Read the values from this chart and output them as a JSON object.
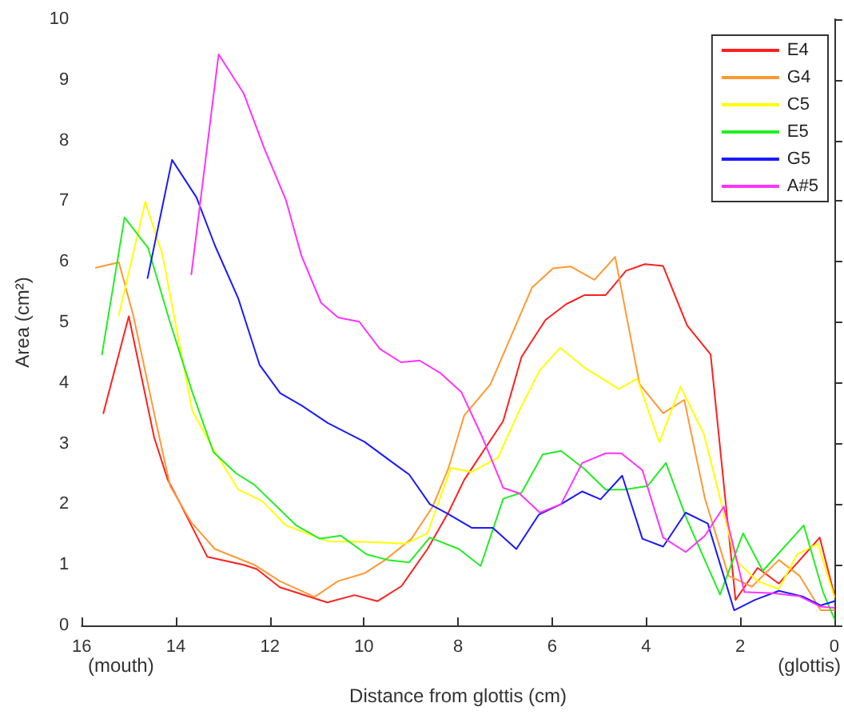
{
  "chart_data": {
    "type": "line",
    "xlabel": "Distance from glottis (cm)",
    "ylabel": "Area (cm²)",
    "annotations": [
      "(mouth)",
      "(glottis)"
    ],
    "xlim": [
      16,
      0
    ],
    "xticks": [
      16,
      14,
      12,
      10,
      8,
      6,
      4,
      2,
      0
    ],
    "ylim": [
      0,
      10
    ],
    "yticks": [
      0,
      1,
      2,
      3,
      4,
      5,
      6,
      7,
      8,
      9,
      10
    ],
    "grid": false,
    "legend": "top right",
    "marker": "none",
    "line_style": "solid",
    "series": [
      {
        "name": "E4",
        "color": "#ff2020",
        "x": [
          15.54,
          15.0,
          14.46,
          14.17,
          13.9,
          13.33,
          12.56,
          12.28,
          11.79,
          10.78,
          10.2,
          9.71,
          9.2,
          8.65,
          8.2,
          7.87,
          7.04,
          6.65,
          6.14,
          5.7,
          5.31,
          4.86,
          4.43,
          4.03,
          3.64,
          3.13,
          2.63,
          2.1,
          1.63,
          1.18,
          0.31,
          0
        ],
        "values": [
          3.5,
          5.1,
          3.1,
          2.4,
          2.0,
          1.13,
          1.0,
          0.93,
          0.63,
          0.38,
          0.5,
          0.4,
          0.65,
          1.26,
          1.87,
          2.4,
          3.37,
          4.43,
          5.04,
          5.3,
          5.45,
          5.45,
          5.85,
          5.96,
          5.93,
          4.95,
          4.47,
          0.42,
          0.95,
          0.69,
          1.45,
          0.5
        ]
      },
      {
        "name": "G4",
        "color": "#ff9933",
        "x": [
          15.7,
          15.21,
          14.9,
          14.4,
          14.12,
          13.67,
          13.17,
          12.33,
          11.79,
          11.05,
          10.55,
          9.99,
          9.55,
          8.99,
          8.54,
          8.21,
          7.87,
          7.31,
          6.43,
          5.98,
          5.6,
          5.1,
          4.66,
          4.14,
          3.64,
          3.19,
          2.75,
          2.25,
          1.75,
          1.18,
          0.74,
          0.29,
          0
        ],
        "values": [
          5.9,
          5.99,
          5.1,
          3.28,
          2.3,
          1.7,
          1.26,
          1.0,
          0.73,
          0.47,
          0.73,
          0.86,
          1.08,
          1.43,
          1.96,
          2.58,
          3.46,
          3.98,
          5.57,
          5.89,
          5.92,
          5.7,
          6.08,
          3.98,
          3.5,
          3.72,
          2.09,
          0.82,
          0.64,
          1.08,
          0.82,
          0.25,
          0.25
        ]
      },
      {
        "name": "C5",
        "color": "#ffff00",
        "x": [
          15.21,
          14.65,
          14.28,
          14.0,
          13.65,
          13.22,
          12.67,
          12.16,
          11.66,
          10.78,
          9.99,
          9.11,
          8.65,
          8.15,
          7.71,
          7.15,
          6.7,
          6.27,
          5.83,
          5.31,
          4.58,
          4.19,
          3.72,
          3.27,
          2.77,
          2.1,
          1.63,
          1.18,
          0.79,
          0.35,
          0
        ],
        "values": [
          5.12,
          6.99,
          6.1,
          4.95,
          3.54,
          2.93,
          2.24,
          2.05,
          1.65,
          1.39,
          1.38,
          1.35,
          1.52,
          2.6,
          2.53,
          2.77,
          3.54,
          4.2,
          4.58,
          4.25,
          3.9,
          4.07,
          3.02,
          3.94,
          3.15,
          1.08,
          0.73,
          0.6,
          1.17,
          1.35,
          0.47
        ]
      },
      {
        "name": "E5",
        "color": "#22ee22",
        "x": [
          15.57,
          15.09,
          14.59,
          14.12,
          13.65,
          13.2,
          12.72,
          12.33,
          11.44,
          10.94,
          10.49,
          9.94,
          9.49,
          9.04,
          8.6,
          7.98,
          7.52,
          7.04,
          6.65,
          6.2,
          5.81,
          5.31,
          4.86,
          4.47,
          3.97,
          3.58,
          3.13,
          2.43,
          1.94,
          1.52,
          0.65,
          0.24,
          0
        ],
        "values": [
          4.47,
          6.73,
          6.23,
          4.99,
          3.85,
          2.86,
          2.51,
          2.32,
          1.65,
          1.43,
          1.48,
          1.17,
          1.08,
          1.04,
          1.45,
          1.26,
          0.98,
          2.09,
          2.19,
          2.82,
          2.88,
          2.58,
          2.24,
          2.24,
          2.3,
          2.68,
          1.74,
          0.51,
          1.52,
          0.9,
          1.65,
          0.55,
          0.11
        ]
      },
      {
        "name": "G5",
        "color": "#1a1aff",
        "x": [
          14.6,
          14.08,
          13.56,
          13.17,
          12.67,
          12.22,
          11.78,
          11.33,
          10.77,
          9.99,
          9.43,
          9.04,
          8.6,
          8.21,
          7.71,
          7.26,
          6.76,
          6.28,
          5.81,
          5.36,
          4.97,
          4.51,
          4.08,
          3.64,
          3.16,
          2.69,
          2.13,
          1.69,
          1.18,
          0.68,
          0.29,
          0
        ],
        "values": [
          5.73,
          7.68,
          7.06,
          6.27,
          5.39,
          4.3,
          3.83,
          3.63,
          3.34,
          3.03,
          2.71,
          2.49,
          2.0,
          1.84,
          1.61,
          1.61,
          1.26,
          1.83,
          2.0,
          2.21,
          2.08,
          2.47,
          1.43,
          1.3,
          1.86,
          1.68,
          0.25,
          0.42,
          0.57,
          0.48,
          0.33,
          0.4
        ]
      },
      {
        "name": "A#5",
        "color": "#ff33ff",
        "x": [
          13.67,
          13.09,
          12.56,
          12.11,
          11.66,
          11.33,
          10.91,
          10.55,
          10.1,
          9.66,
          9.21,
          8.82,
          8.37,
          7.93,
          7.48,
          7.04,
          6.7,
          6.26,
          5.81,
          5.36,
          4.86,
          4.53,
          4.08,
          3.64,
          3.16,
          2.75,
          2.35,
          1.91,
          1.3,
          0.74,
          0.29,
          0
        ],
        "values": [
          5.79,
          9.42,
          8.78,
          7.85,
          7.02,
          6.1,
          5.32,
          5.08,
          5.01,
          4.56,
          4.34,
          4.37,
          4.16,
          3.85,
          3.1,
          2.27,
          2.18,
          1.86,
          2.0,
          2.68,
          2.84,
          2.84,
          2.56,
          1.45,
          1.21,
          1.48,
          1.96,
          0.55,
          0.53,
          0.48,
          0.31,
          0.29
        ]
      }
    ]
  }
}
